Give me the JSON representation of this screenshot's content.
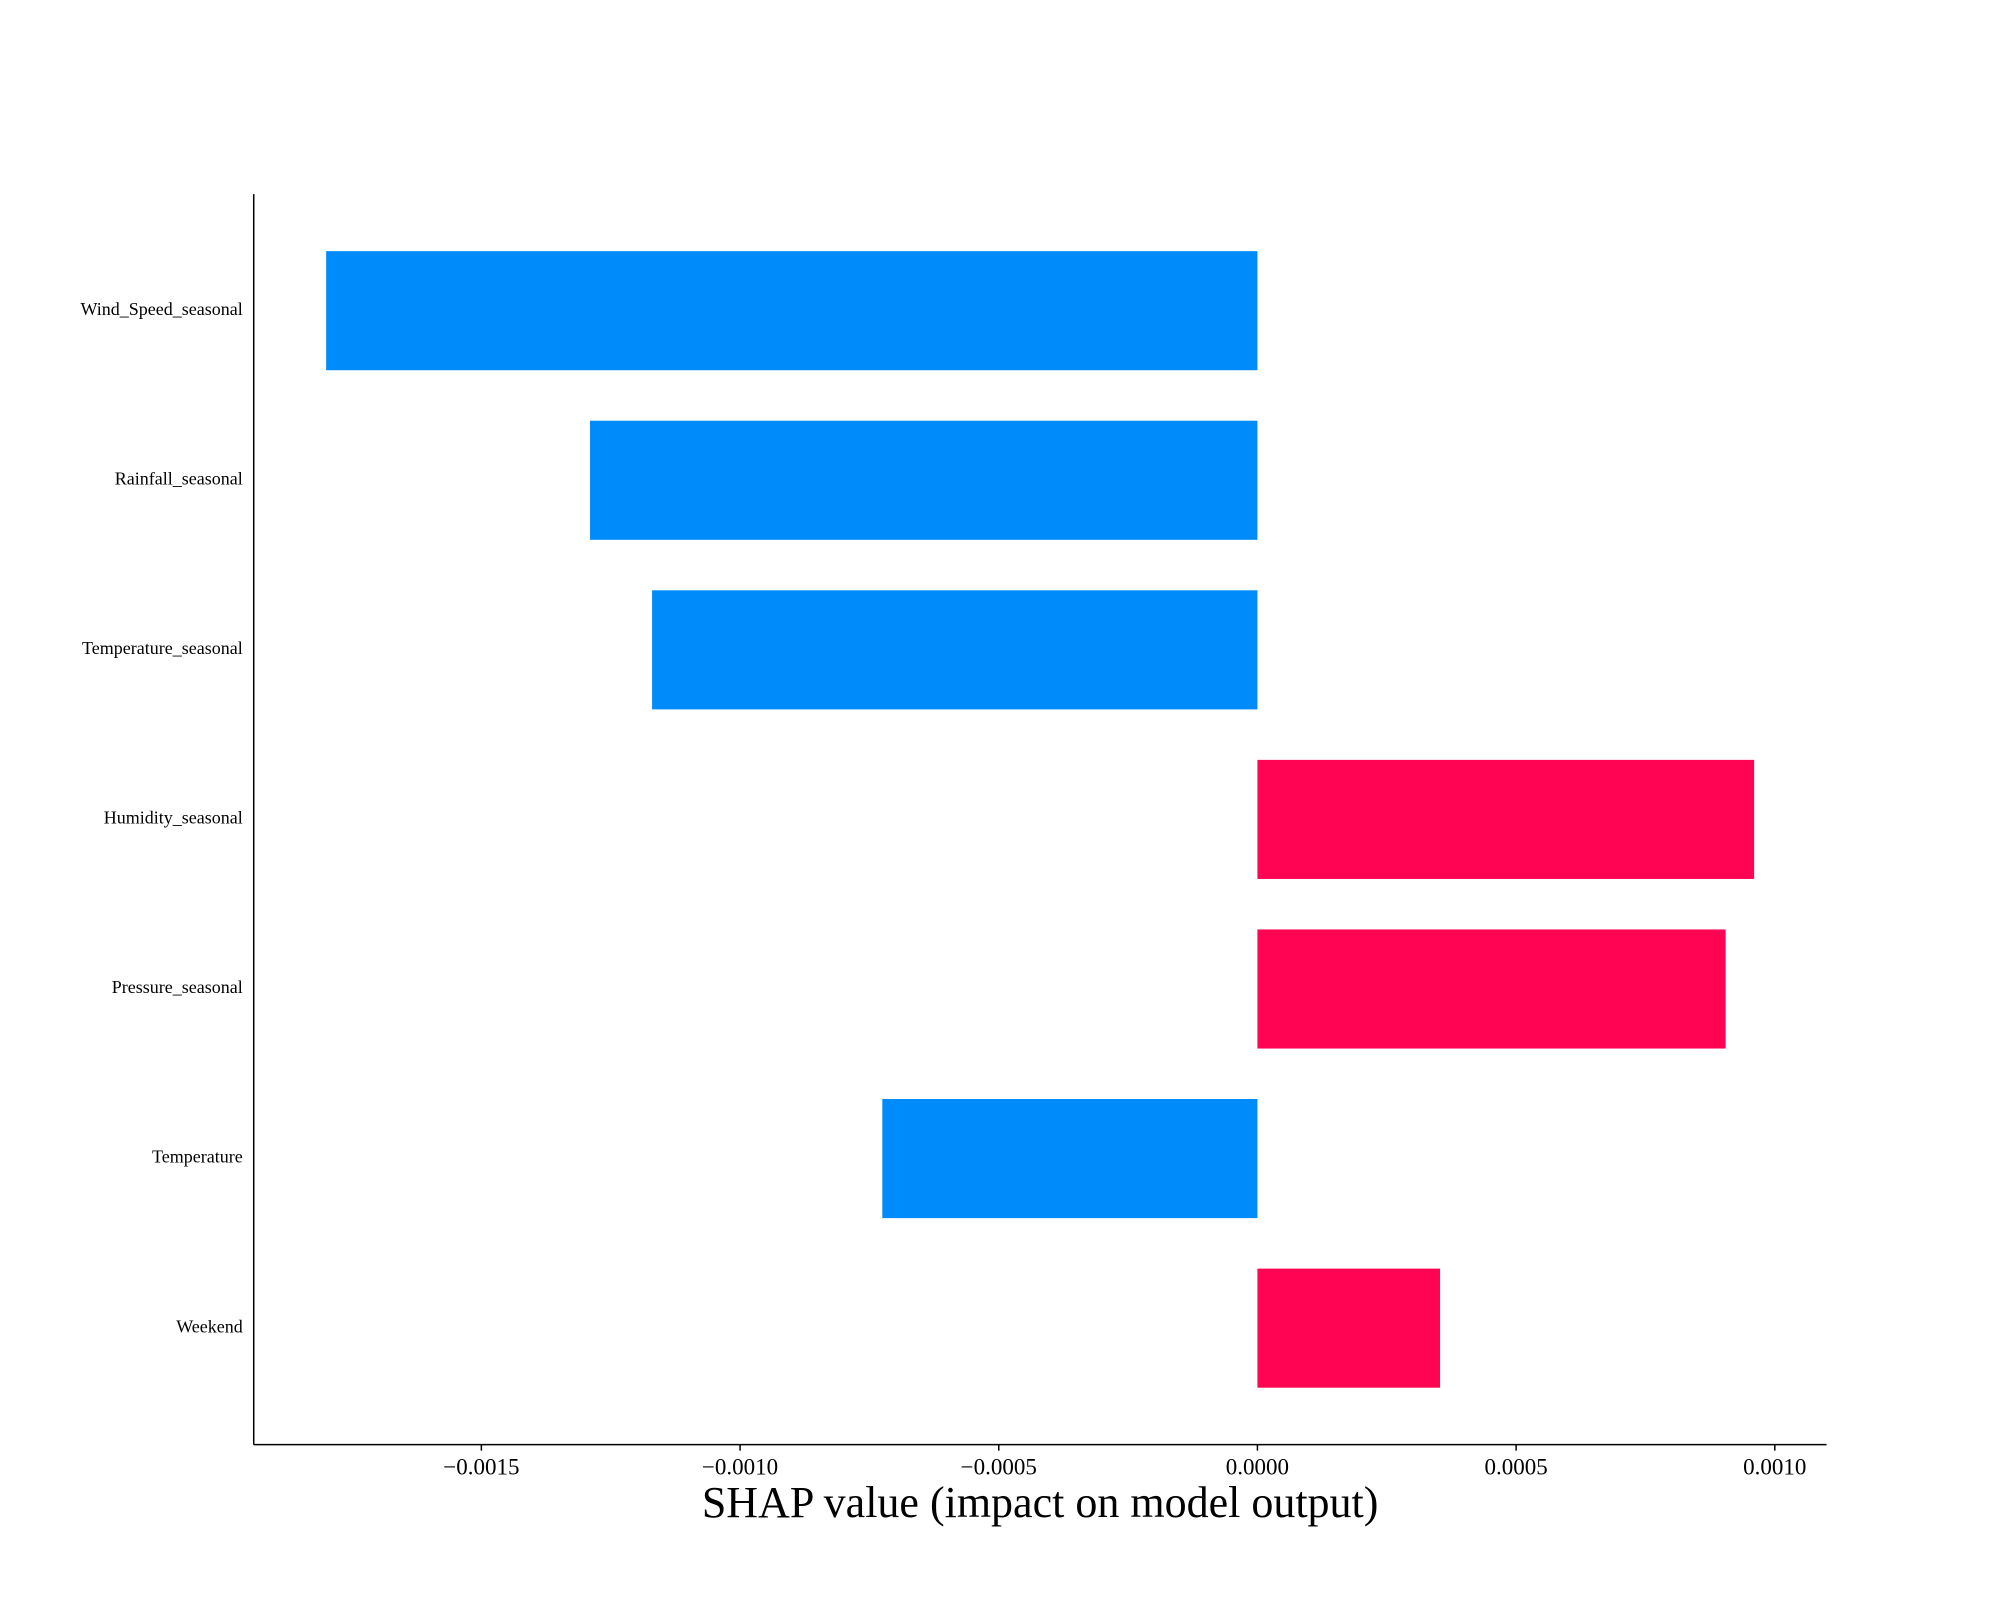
{
  "chart_data": {
    "type": "bar",
    "orientation": "horizontal",
    "title": "",
    "xlabel": "SHAP value (impact on model output)",
    "ylabel": "",
    "categories": [
      "Wind_Speed_seasonal",
      "Rainfall_seasonal",
      "Temperature_seasonal",
      "Humidity_seasonal",
      "Pressure_seasonal",
      "Temperature",
      "Weekend"
    ],
    "values": [
      -0.0018,
      -0.00129,
      -0.00117,
      0.00096,
      0.000905,
      -0.000725,
      0.000353
    ],
    "xlim": [
      -0.00194,
      0.0011
    ],
    "xticks": [
      -0.0015,
      -0.001,
      -0.0005,
      0.0,
      0.0005,
      0.001
    ],
    "xtick_labels": [
      "−0.0015",
      "−0.0010",
      "−0.0005",
      "0.0000",
      "0.0005",
      "0.0010"
    ],
    "grid": false,
    "colors": {
      "positive": "#ff0452",
      "negative": "#008bfa",
      "axis": "#000000"
    }
  }
}
